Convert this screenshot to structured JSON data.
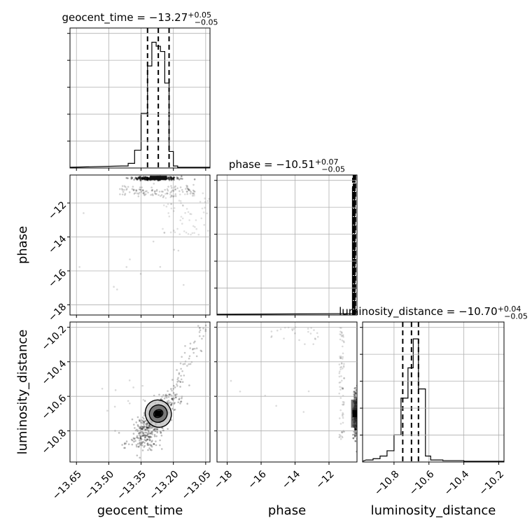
{
  "chart_data": {
    "type": "corner",
    "parameters": [
      "geocent_time",
      "phase",
      "luminosity_distance"
    ],
    "titles": [
      {
        "param": "geocent_time",
        "label": "geocent_time = ",
        "median": "−13.27",
        "plus": "+0.05",
        "minus": "−0.05"
      },
      {
        "param": "phase",
        "label": "phase = ",
        "median": "−10.51",
        "plus": "+0.07",
        "minus": "−0.05"
      },
      {
        "param": "luminosity_distance",
        "label": "luminosity_distance = ",
        "median": "−10.70",
        "plus": "+0.04",
        "minus": "−0.05"
      }
    ],
    "axis_labels": {
      "x": [
        "geocent_time",
        "phase",
        "luminosity_distance"
      ],
      "y": [
        "phase",
        "luminosity_distance"
      ]
    },
    "ranges": {
      "geocent_time": [
        -13.68,
        -13.03
      ],
      "phase": [
        -18.6,
        -10.35
      ],
      "luminosity_distance": [
        -10.98,
        -10.17
      ]
    },
    "ticks": {
      "geocent_time": {
        "values": [
          -13.65,
          -13.5,
          -13.35,
          -13.2,
          -13.05
        ],
        "labels": [
          "−13.65",
          "−13.50",
          "−13.35",
          "−13.20",
          "−13.05"
        ]
      },
      "phase": {
        "values": [
          -18,
          -16,
          -14,
          -12
        ],
        "labels": [
          "−18",
          "−16",
          "−14",
          "−12"
        ]
      },
      "luminosity_distance": {
        "values": [
          -10.8,
          -10.6,
          -10.4,
          -10.2
        ],
        "labels": [
          "−10.8",
          "−10.6",
          "−10.4",
          "−10.2"
        ]
      }
    },
    "quantiles": {
      "geocent_time": [
        -13.32,
        -13.27,
        -13.22
      ],
      "phase": [
        -10.56,
        -10.51,
        -10.44
      ],
      "luminosity_distance": [
        -10.75,
        -10.7,
        -10.66
      ]
    },
    "histograms": {
      "geocent_time": {
        "edges": [
          -13.44,
          -13.41,
          -13.38,
          -13.35,
          -13.32,
          -13.3,
          -13.28,
          -13.26,
          -13.24,
          -13.22,
          -13.2,
          -13.18,
          -13.15
        ],
        "counts": [
          0.01,
          0.03,
          0.13,
          0.41,
          0.77,
          0.95,
          0.92,
          0.88,
          0.64,
          0.12,
          0.01,
          0.0
        ]
      },
      "phase": {
        "edges": [
          -11.2,
          -10.62,
          -10.5,
          -10.36
        ],
        "counts": [
          0.005,
          0.96,
          0.02
        ]
      },
      "luminosity_distance": {
        "edges": [
          -10.96,
          -10.92,
          -10.88,
          -10.84,
          -10.8,
          -10.76,
          -10.72,
          -10.69,
          -10.66,
          -10.62,
          -10.59,
          -10.52,
          -10.4,
          -10.3
        ],
        "counts": [
          0.01,
          0.02,
          0.04,
          0.08,
          0.2,
          0.48,
          0.71,
          0.93,
          0.55,
          0.04,
          0.01,
          0.005,
          0.0
        ]
      }
    },
    "contours": {
      "geocent_time__luminosity_distance": {
        "center": [
          -13.27,
          -10.7
        ],
        "levels": [
          [
            0.022,
            0.022
          ],
          [
            0.042,
            0.05
          ],
          [
            0.06,
            0.08
          ]
        ]
      }
    },
    "grid": true
  }
}
